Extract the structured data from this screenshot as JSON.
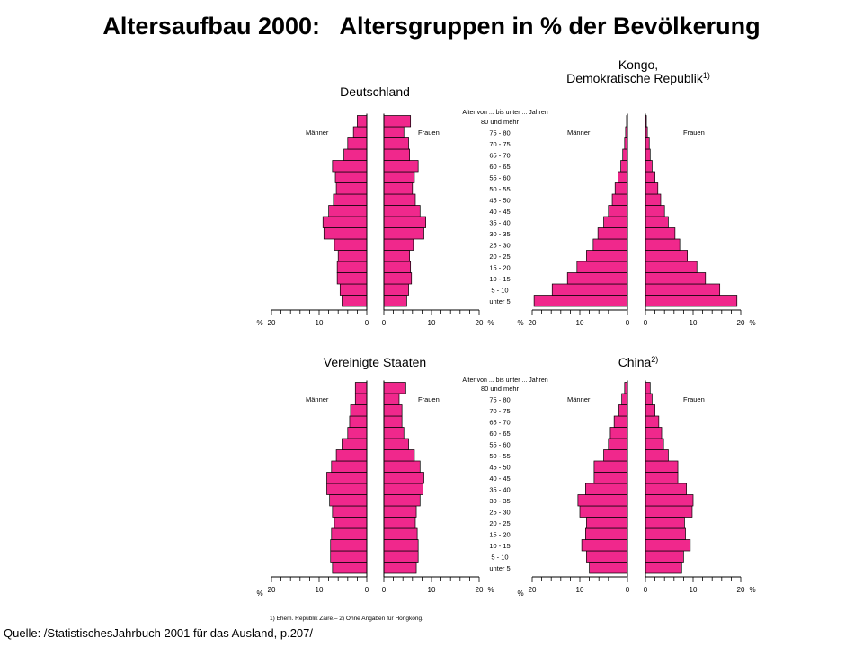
{
  "title": "Altersaufbau 2000:   Altersgruppen in % der Bevölkerung",
  "source": "Quelle: /StatistischesJahrbuch 2001 für das Ausland, p.207/",
  "footnote": "1) Ehem. Republik Zaire.– 2) Ohne Angaben für Hongkong.",
  "colors": {
    "bar": "#f0288c",
    "bar_edge": "#000000",
    "axis": "#000000"
  },
  "chart_data": [
    {
      "type": "bar",
      "title": "Deutschland",
      "title_sup": "",
      "age_axis_label": "Alter von ... bis unter ... Jahren",
      "male_label": "Männer",
      "female_label": "Frauen",
      "categories": [
        "unter 5",
        "5 - 10",
        "10 - 15",
        "15 - 20",
        "20 - 25",
        "25 - 30",
        "30 - 35",
        "35 - 40",
        "40 - 45",
        "45 - 50",
        "50 - 55",
        "55 - 60",
        "60 - 65",
        "65 - 70",
        "70 - 75",
        "75 - 80",
        "80 und mehr"
      ],
      "series": [
        {
          "name": "Männer",
          "values": [
            5.2,
            5.6,
            6.2,
            6.2,
            6.0,
            6.8,
            9.0,
            9.2,
            8.0,
            7.0,
            6.4,
            6.6,
            7.2,
            4.8,
            4.0,
            2.8,
            2.0
          ]
        },
        {
          "name": "Frauen",
          "values": [
            4.8,
            5.2,
            5.8,
            5.6,
            5.4,
            6.2,
            8.4,
            8.8,
            7.6,
            6.6,
            6.0,
            6.4,
            7.2,
            5.4,
            5.2,
            4.2,
            5.6
          ]
        }
      ],
      "xlim": [
        0,
        20
      ],
      "left_ticks": [
        "20",
        "10",
        "0"
      ],
      "right_ticks": [
        "0",
        "10",
        "20"
      ],
      "percent_label": "%"
    },
    {
      "type": "bar",
      "title": "Kongo,\nDemokratische Republik",
      "title_sup": "1)",
      "age_axis_label": "",
      "male_label": "Männer",
      "female_label": "Frauen",
      "categories": [
        "unter 5",
        "5 - 10",
        "10 - 15",
        "15 - 20",
        "20 - 25",
        "25 - 30",
        "30 - 35",
        "35 - 40",
        "40 - 45",
        "45 - 50",
        "50 - 55",
        "55 - 60",
        "60 - 65",
        "65 - 70",
        "70 - 75",
        "75 - 80",
        "80 und mehr"
      ],
      "series": [
        {
          "name": "Männer",
          "values": [
            19.6,
            15.8,
            12.6,
            10.6,
            8.6,
            7.2,
            6.2,
            5.0,
            4.0,
            3.2,
            2.6,
            2.0,
            1.4,
            1.0,
            0.6,
            0.4,
            0.2
          ]
        },
        {
          "name": "Frauen",
          "values": [
            19.2,
            15.6,
            12.6,
            10.8,
            8.8,
            7.2,
            6.2,
            4.8,
            4.0,
            3.2,
            2.6,
            2.0,
            1.4,
            1.0,
            0.8,
            0.4,
            0.2
          ]
        }
      ],
      "xlim": [
        0,
        20
      ],
      "left_ticks": [
        "20",
        "10",
        "0"
      ],
      "right_ticks": [
        "0",
        "10",
        "20"
      ],
      "percent_label": "%"
    },
    {
      "type": "bar",
      "title": "Vereinigte Staaten",
      "title_sup": "",
      "age_axis_label": "Alter von ... bis unter ... Jahren",
      "male_label": "Männer",
      "female_label": "Frauen",
      "categories": [
        "unter 5",
        "5 - 10",
        "10 - 15",
        "15 - 20",
        "20 - 25",
        "25 - 30",
        "30 - 35",
        "35 - 40",
        "40 - 45",
        "45 - 50",
        "50 - 55",
        "55 - 60",
        "60 - 65",
        "65 - 70",
        "70 - 75",
        "75 - 80",
        "80 und mehr"
      ],
      "series": [
        {
          "name": "Männer",
          "values": [
            7.2,
            7.6,
            7.6,
            7.4,
            6.8,
            7.2,
            7.8,
            8.4,
            8.4,
            7.4,
            6.4,
            5.2,
            4.0,
            3.6,
            3.4,
            2.4,
            2.4
          ]
        },
        {
          "name": "Frauen",
          "values": [
            6.8,
            7.2,
            7.2,
            7.0,
            6.6,
            6.8,
            7.6,
            8.2,
            8.4,
            7.6,
            6.4,
            5.2,
            4.2,
            3.8,
            3.8,
            3.2,
            4.6
          ]
        }
      ],
      "xlim": [
        0,
        20
      ],
      "left_ticks": [
        "20",
        "10",
        "0"
      ],
      "right_ticks": [
        "0",
        "10",
        "20"
      ],
      "percent_label": "%"
    },
    {
      "type": "bar",
      "title": "China",
      "title_sup": "2)",
      "age_axis_label": "Alter von ... bis unter ... Jahren",
      "male_label": "Männer",
      "female_label": "Frauen",
      "categories": [
        "unter 5",
        "5 - 10",
        "10 - 15",
        "15 - 20",
        "20 - 25",
        "25 - 30",
        "30 - 35",
        "35 - 40",
        "40 - 45",
        "45 - 50",
        "50 - 55",
        "55 - 60",
        "60 - 65",
        "65 - 70",
        "70 - 75",
        "75 - 80",
        "80 und mehr"
      ],
      "series": [
        {
          "name": "Männer",
          "values": [
            8.0,
            8.6,
            9.6,
            8.8,
            8.6,
            10.0,
            10.4,
            8.8,
            7.0,
            7.0,
            5.0,
            4.0,
            3.6,
            2.8,
            1.8,
            1.2,
            0.6
          ]
        },
        {
          "name": "Frauen",
          "values": [
            7.6,
            8.0,
            9.4,
            8.4,
            8.2,
            9.8,
            10.0,
            8.6,
            6.8,
            6.8,
            4.8,
            3.8,
            3.4,
            2.8,
            2.0,
            1.4,
            1.0
          ]
        }
      ],
      "xlim": [
        0,
        20
      ],
      "left_ticks": [
        "20",
        "10",
        "0"
      ],
      "right_ticks": [
        "0",
        "10",
        "20"
      ],
      "percent_label": "%"
    }
  ]
}
